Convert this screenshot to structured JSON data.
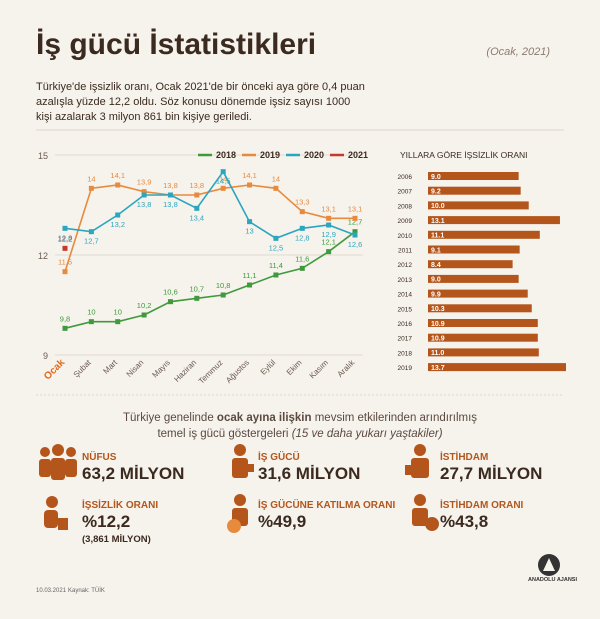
{
  "header": {
    "title": "İş gücü İstatistikleri",
    "date": "(Ocak, 2021)",
    "intro": "Türkiye'de işsizlik oranı, Ocak 2021'de bir önceki aya göre 0,4 puan azalışla yüzde 12,2 oldu. Söz konusu dönemde işsiz sayısı 1000 kişi azalarak 3 milyon 861 bin kişiye geriledi."
  },
  "chart_data": [
    {
      "type": "line",
      "categories": [
        "Ocak",
        "Şubat",
        "Mart",
        "Nisan",
        "Mayıs",
        "Haziran",
        "Temmuz",
        "Ağustos",
        "Eylül",
        "Ekim",
        "Kasım",
        "Aralık"
      ],
      "ylim": [
        9,
        15
      ],
      "yticks": [
        9,
        12,
        15
      ],
      "series": [
        {
          "name": "2018",
          "color": "#3f9a3c",
          "values": [
            9.8,
            10,
            10,
            10.2,
            10.6,
            10.7,
            10.8,
            11.1,
            11.4,
            11.6,
            12.1,
            12.7
          ],
          "value_labels": [
            "9,8",
            "10",
            "10",
            "10,2",
            "10,6",
            "10,7",
            "10,8",
            "11,1",
            "11,4",
            "11,6",
            "12,1",
            "12,7"
          ]
        },
        {
          "name": "2019",
          "color": "#e88a3c",
          "values": [
            11.5,
            14,
            14.1,
            13.9,
            13.8,
            13.8,
            14,
            14.1,
            14,
            13.3,
            13.1,
            13.1
          ],
          "value_labels": [
            "11,5",
            "14",
            "14,1",
            "13,9",
            "13,8",
            "13,8",
            "14",
            "14,1",
            "14",
            "13,3",
            "13,1",
            "13,1"
          ]
        },
        {
          "name": "2020",
          "color": "#2ba6bf",
          "values": [
            12.8,
            12.7,
            13.2,
            13.8,
            13.8,
            13.4,
            14.5,
            13,
            12.5,
            12.8,
            12.9,
            12.6
          ],
          "value_labels": [
            "12,8",
            "12,7",
            "13,2",
            "13,8",
            "13,8",
            "13,4",
            "14,5",
            "13",
            "12,5",
            "12,8",
            "12,9",
            "12,6"
          ]
        },
        {
          "name": "2021",
          "color": "#c43b2e",
          "values": [
            12.2,
            null,
            null,
            null,
            null,
            null,
            null,
            null,
            null,
            null,
            null,
            null
          ],
          "value_labels": [
            "12,2",
            null,
            null,
            null,
            null,
            null,
            null,
            null,
            null,
            null,
            null,
            null
          ]
        }
      ]
    },
    {
      "type": "barh",
      "title": "YILLARA GÖRE İŞSİZLİK ORANI",
      "color": "#b4561c",
      "categories": [
        "2006",
        "2007",
        "2008",
        "2009",
        "2010",
        "2011",
        "2012",
        "2013",
        "2014",
        "2015",
        "2016",
        "2017",
        "2018",
        "2019"
      ],
      "values": [
        9.0,
        9.2,
        10.0,
        13.1,
        11.1,
        9.1,
        8.4,
        9.0,
        9.9,
        10.3,
        10.9,
        10.9,
        11.0,
        13.7
      ],
      "value_labels": [
        "9.0",
        "9.2",
        "10.0",
        "13.1",
        "11.1",
        "9.1",
        "8.4",
        "9.0",
        "9.9",
        "10.3",
        "10.9",
        "10.9",
        "11.0",
        "13.7"
      ]
    }
  ],
  "stats_intro": [
    "Türkiye genelinde ",
    "ocak ayına ilişkin",
    " mevsim etkilerinden arındırılmış",
    "temel iş gücü göstergeleri ",
    "(15 ve daha yukarı yaştakiler)"
  ],
  "stats": [
    {
      "label": "NÜFUS",
      "value": "63,2 MİLYON"
    },
    {
      "label": "İŞ GÜCÜ",
      "value": "31,6 MİLYON"
    },
    {
      "label": "İSTİHDAM",
      "value": "27,7 MİLYON"
    },
    {
      "label": "İŞSİZLİK ORANI",
      "value": "%12,2",
      "note": "(3,861 MİLYON)"
    },
    {
      "label": "İŞ GÜCÜNE KATILMA ORANI",
      "value": "%49,9"
    },
    {
      "label": "İSTİHDAM ORANI",
      "value": "%43,8"
    }
  ],
  "footer": {
    "date": "10.03.2021",
    "source": "Kaynak: TÜİK",
    "agency": "ANADOLU AJANSI"
  }
}
